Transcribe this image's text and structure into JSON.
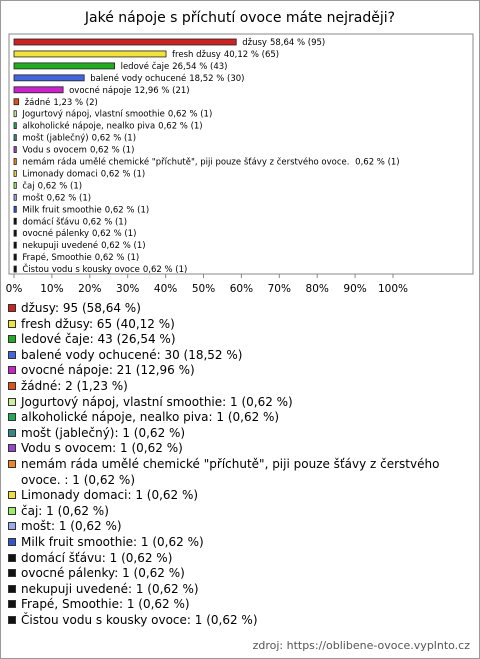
{
  "chart_data": {
    "type": "hbar",
    "title": "Jaké nápoje s příchutí ovoce máte nejraději?",
    "source": "zdroj: https://oblibene-ovoce.vyplnto.cz",
    "categories": [
      "džusy",
      "fresh džusy",
      "ledové čaje",
      "balené vody ochucené",
      "ovocné nápoje",
      "žádné",
      "Jogurtový nápoj, vlastní smoothie",
      "alkoholické nápoje, nealko piva",
      "mošt (jablečný)",
      "Vodu s ovocem",
      "nemám ráda umělé chemické \"příchutě\", piji pouze šťávy z čerstvého ovoce. ",
      "Limonady domaci",
      "čaj",
      "mošt",
      "Milk fruit smoothie",
      "domácí šťávu",
      "ovocné pálenky",
      "nekupuji uvedené",
      "Frapé, Smoothie",
      "Čistou vodu s kousky ovoce"
    ],
    "values": [
      58.64,
      40.12,
      26.54,
      18.52,
      12.96,
      1.23,
      0.62,
      0.62,
      0.62,
      0.62,
      0.62,
      0.62,
      0.62,
      0.62,
      0.62,
      0.62,
      0.62,
      0.62,
      0.62,
      0.62
    ],
    "value_labels": [
      "58,64 % (95)",
      "40,12 % (65)",
      "26,54 % (43)",
      "18,52 % (30)",
      "12,96 % (21)",
      "1,23 % (2)",
      "0,62 % (1)",
      "0,62 % (1)",
      "0,62 % (1)",
      "0,62 % (1)",
      "0,62 % (1)",
      "0,62 % (1)",
      "0,62 % (1)",
      "0,62 % (1)",
      "0,62 % (1)",
      "0,62 % (1)",
      "0,62 % (1)",
      "0,62 % (1)",
      "0,62 % (1)",
      "0,62 % (1)"
    ],
    "legend_labels": [
      "džusy: 95 (58,64 %)",
      "fresh džusy: 65 (40,12 %)",
      "ledové čaje: 43 (26,54 %)",
      "balené vody ochucené: 30 (18,52 %)",
      "ovocné nápoje: 21 (12,96 %)",
      "žádné: 2 (1,23 %)",
      "Jogurtový nápoj, vlastní smoothie: 1 (0,62 %)",
      "alkoholické nápoje, nealko piva: 1 (0,62 %)",
      "mošt (jablečný): 1 (0,62 %)",
      "Vodu s ovocem: 1 (0,62 %)",
      "nemám ráda umělé chemické \"příchutě\", piji pouze šťávy z čerstvého ovoce. : 1 (0,62 %)",
      "Limonady domaci: 1 (0,62 %)",
      "čaj: 1 (0,62 %)",
      "mošt: 1 (0,62 %)",
      "Milk fruit smoothie: 1 (0,62 %)",
      "domácí šťávu: 1 (0,62 %)",
      "ovocné pálenky: 1 (0,62 %)",
      "nekupuji uvedené: 1 (0,62 %)",
      "Frapé, Smoothie: 1 (0,62 %)",
      "Čistou vodu s kousky ovoce: 1 (0,62 %)"
    ],
    "colors": [
      "#cc2222",
      "#f2e23c",
      "#22aa22",
      "#4466dd",
      "#cc22cc",
      "#e0501a",
      "#ccf0a0",
      "#22aa55",
      "#338888",
      "#9944cc",
      "#ee8822",
      "#eedd44",
      "#99ee66",
      "#99aaee",
      "#3355cc",
      "#111111",
      "#111111",
      "#111111",
      "#111111",
      "#111111"
    ],
    "xlim": [
      0,
      100
    ],
    "xticks": [
      {
        "value": 0,
        "label": "0%"
      },
      {
        "value": 10,
        "label": "10%"
      },
      {
        "value": 20,
        "label": "20%"
      },
      {
        "value": 30,
        "label": "30%"
      },
      {
        "value": 40,
        "label": "40%"
      },
      {
        "value": 50,
        "label": "50%"
      },
      {
        "value": 60,
        "label": "60%"
      },
      {
        "value": 70,
        "label": "70%"
      },
      {
        "value": 80,
        "label": "80%"
      },
      {
        "value": 90,
        "label": "90%"
      },
      {
        "value": 100,
        "label": "100%"
      }
    ]
  }
}
